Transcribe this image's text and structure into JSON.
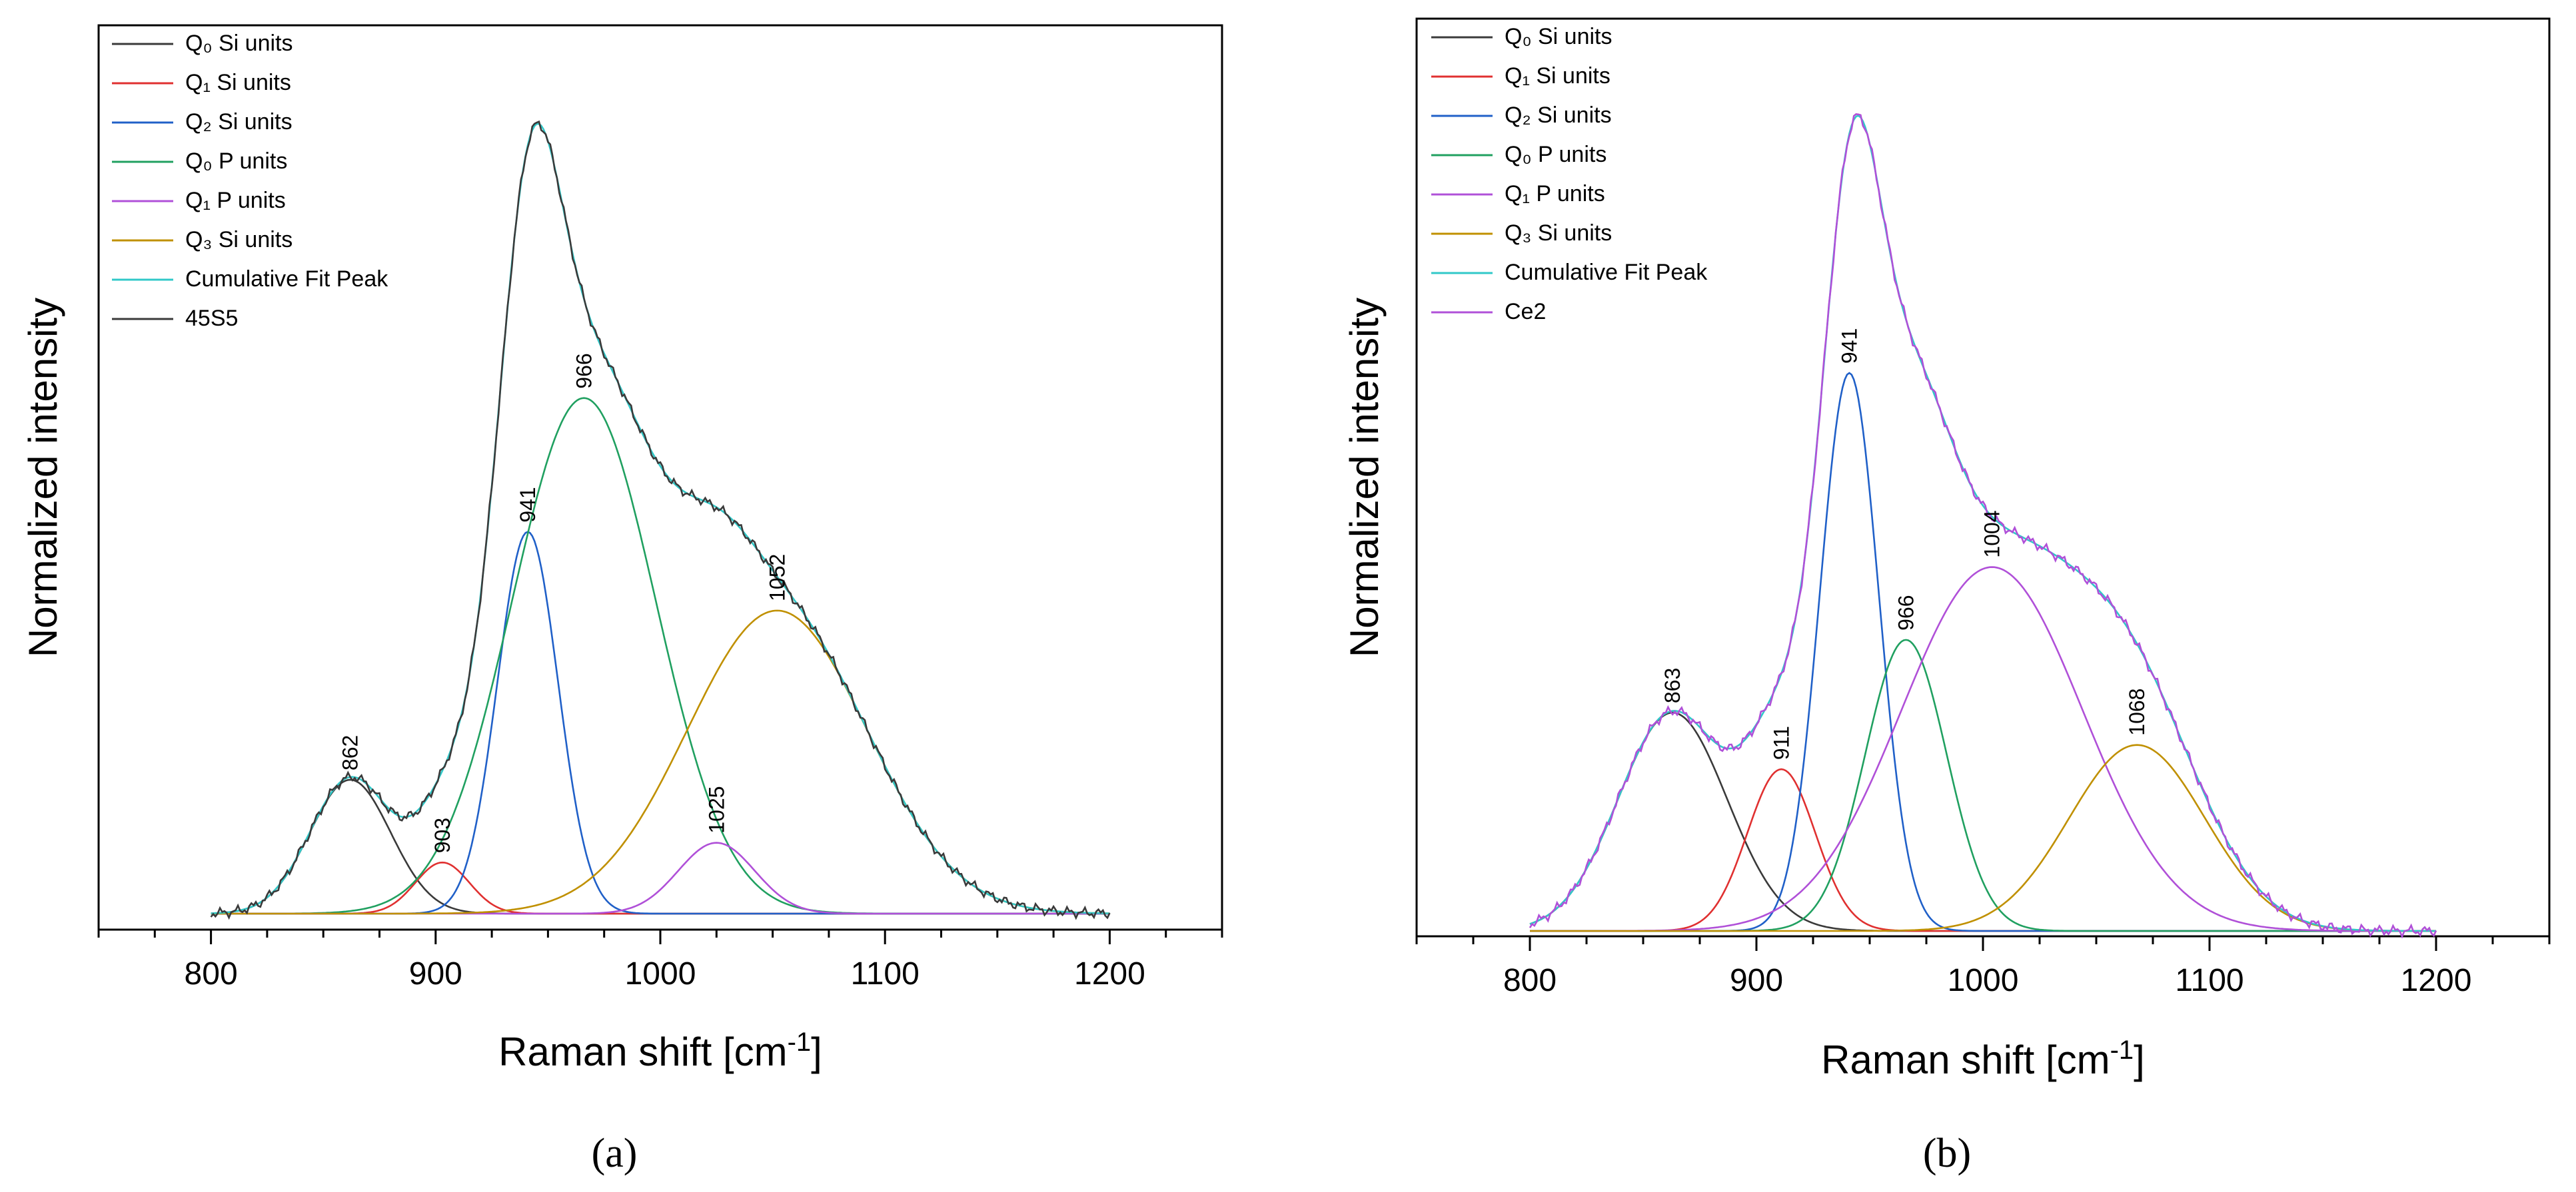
{
  "chart_data": [
    {
      "type": "line",
      "panel_label": "(a)",
      "xlabel": "Raman shift [cm",
      "xlabel_superscript": "-1",
      "xlabel_suffix": "]",
      "ylabel": "Normalized intensity",
      "xlim": [
        750,
        1250
      ],
      "ylim": [
        0,
        1.12
      ],
      "xticks": [
        800,
        900,
        1000,
        1100,
        1200
      ],
      "series": [
        {
          "name": "Q₀ Si units",
          "kind": "gauss",
          "center": 862,
          "amplitude": 0.17,
          "sigma": 18,
          "color": "#3a3a3a"
        },
        {
          "name": "Q₁ Si units",
          "kind": "gauss",
          "center": 903,
          "amplitude": 0.065,
          "sigma": 12,
          "color": "#e03030"
        },
        {
          "name": "Q₂ Si units",
          "kind": "gauss",
          "center": 941,
          "amplitude": 0.485,
          "sigma": 13.5,
          "color": "#2060c8"
        },
        {
          "name": "Q₀ P units",
          "kind": "gauss",
          "center": 966,
          "amplitude": 0.655,
          "sigma": 32,
          "color": "#20a060"
        },
        {
          "name": "Q₁ P units",
          "kind": "gauss",
          "center": 1025,
          "amplitude": 0.09,
          "sigma": 17,
          "color": "#b050d8"
        },
        {
          "name": "Q₃ Si units",
          "kind": "gauss",
          "center": 1052,
          "amplitude": 0.385,
          "sigma": 40,
          "color": "#c09000"
        },
        {
          "name": "Cumulative Fit Peak",
          "kind": "sum",
          "color": "#30c8c8"
        },
        {
          "name": "45S5",
          "kind": "sum",
          "color": "#3a3a3a"
        }
      ],
      "annotations": [
        {
          "text": "862",
          "x": 862
        },
        {
          "text": "903",
          "x": 903
        },
        {
          "text": "941",
          "x": 941
        },
        {
          "text": "966",
          "x": 966
        },
        {
          "text": "1025",
          "x": 1025
        },
        {
          "text": "1052",
          "x": 1052
        }
      ]
    },
    {
      "type": "line",
      "panel_label": "(b)",
      "xlabel": "Raman shift [cm",
      "xlabel_superscript": "-1",
      "xlabel_suffix": "]",
      "ylabel": "Normalized intensity",
      "xlim": [
        750,
        1250
      ],
      "ylim": [
        0,
        1.12
      ],
      "xticks": [
        800,
        900,
        1000,
        1100,
        1200
      ],
      "series": [
        {
          "name": "Q₀ Si units",
          "kind": "gauss",
          "center": 863,
          "amplitude": 0.27,
          "sigma": 24,
          "color": "#3a3a3a"
        },
        {
          "name": "Q₁ Si units",
          "kind": "gauss",
          "center": 911,
          "amplitude": 0.2,
          "sigma": 15,
          "color": "#e03030"
        },
        {
          "name": "Q₂ Si units",
          "kind": "gauss",
          "center": 941,
          "amplitude": 0.69,
          "sigma": 13,
          "color": "#2060c8"
        },
        {
          "name": "Q₀ P units",
          "kind": "gauss",
          "center": 966,
          "amplitude": 0.36,
          "sigma": 18,
          "color": "#20a060"
        },
        {
          "name": "Q₁ P units",
          "kind": "gauss",
          "center": 1004,
          "amplitude": 0.45,
          "sigma": 40,
          "color": "#b050d8"
        },
        {
          "name": "Q₃ Si units",
          "kind": "gauss",
          "center": 1068,
          "amplitude": 0.23,
          "sigma": 30,
          "color": "#c09000"
        },
        {
          "name": "Cumulative Fit Peak",
          "kind": "sum",
          "color": "#30c8c8"
        },
        {
          "name": "Ce2",
          "kind": "sum",
          "color": "#b050d8"
        }
      ],
      "annotations": [
        {
          "text": "863",
          "x": 863
        },
        {
          "text": "911",
          "x": 911
        },
        {
          "text": "941",
          "x": 941
        },
        {
          "text": "966",
          "x": 966
        },
        {
          "text": "1004",
          "x": 1004
        },
        {
          "text": "1068",
          "x": 1068
        }
      ]
    }
  ]
}
